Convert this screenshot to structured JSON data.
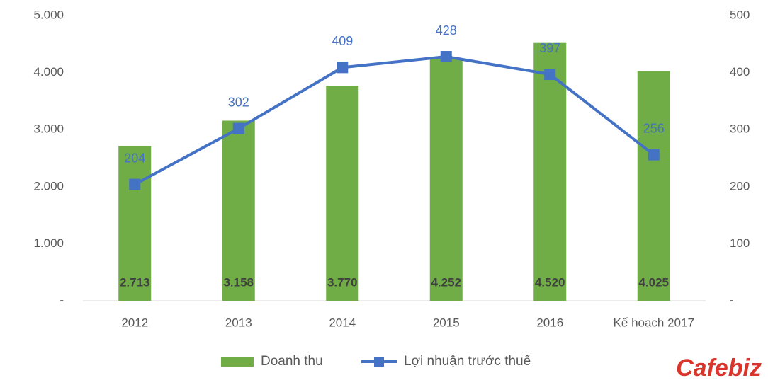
{
  "chart_data": {
    "type": "bar",
    "categories": [
      "2012",
      "2013",
      "2014",
      "2015",
      "2016",
      "Kế hoạch 2017"
    ],
    "series": [
      {
        "name": "Doanh thu",
        "type": "bar",
        "color": "#70ad47",
        "values": [
          2713,
          3158,
          3770,
          4252,
          4520,
          4025
        ],
        "value_labels": [
          "2.713",
          "3.158",
          "3.770",
          "4.252",
          "4.520",
          "4.025"
        ]
      },
      {
        "name": "Lợi nhuận trước thuế",
        "type": "line",
        "axis": "y2",
        "color": "#4472c4",
        "values": [
          204,
          302,
          409,
          428,
          397,
          256
        ]
      }
    ],
    "ylim": [
      0,
      5000
    ],
    "yticks": [
      {
        "value": 0,
        "label": "-"
      },
      {
        "value": 1000,
        "label": "1.000"
      },
      {
        "value": 2000,
        "label": "2.000"
      },
      {
        "value": 3000,
        "label": "3.000"
      },
      {
        "value": 4000,
        "label": "4.000"
      },
      {
        "value": 5000,
        "label": "5.000"
      }
    ],
    "y2lim": [
      0,
      500
    ],
    "y2ticks": [
      {
        "value": 0,
        "label": "-"
      },
      100,
      200,
      300,
      400,
      500
    ],
    "legend": "bottom",
    "watermark": "Cafebiz"
  }
}
